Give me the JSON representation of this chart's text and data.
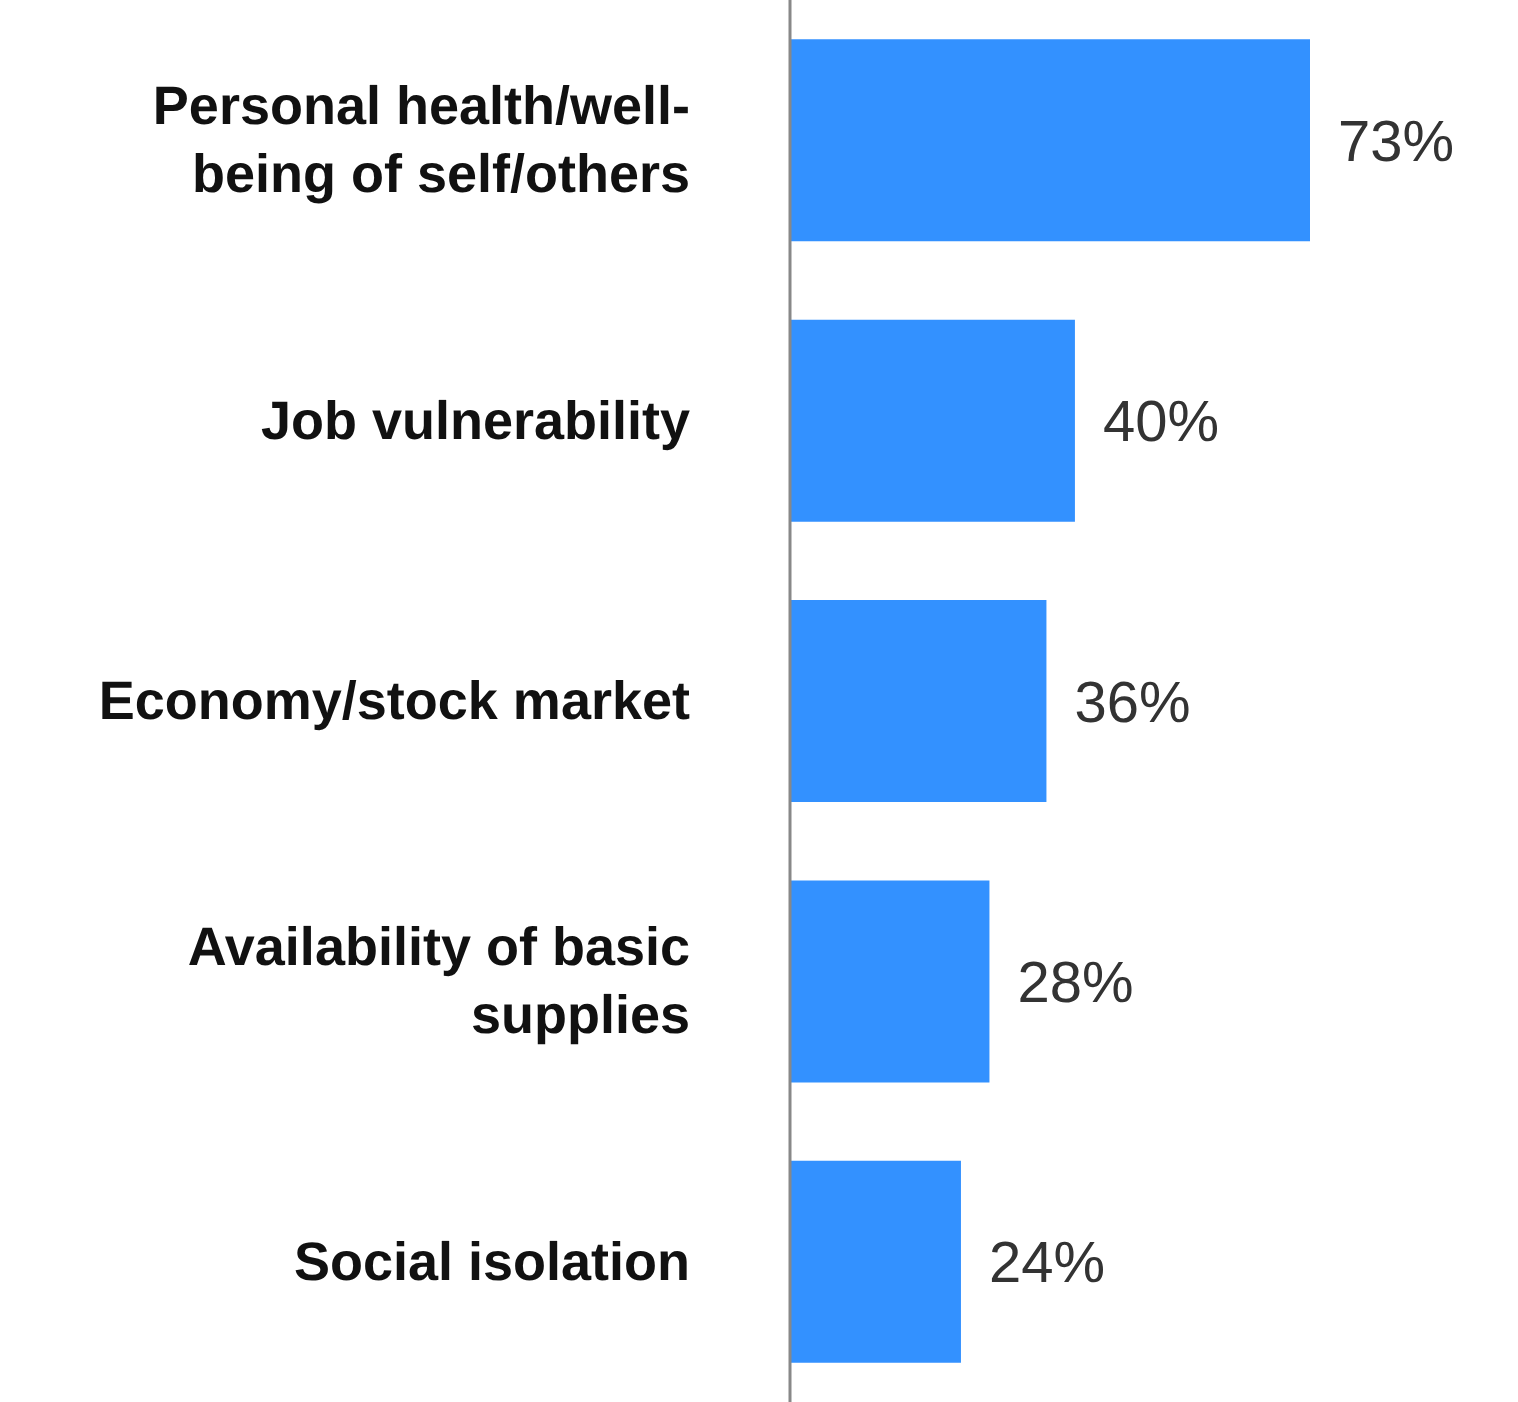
{
  "chart_data": {
    "type": "bar",
    "orientation": "horizontal",
    "categories": [
      "Personal health/well-being of self/others",
      "Job vulnerability",
      "Economy/stock market",
      "Availability of basic supplies",
      "Social isolation"
    ],
    "values": [
      73,
      40,
      36,
      28,
      24
    ],
    "color": "#3391ff",
    "value_labels": [
      "73%",
      "40%",
      "36%",
      "28%",
      "24%"
    ],
    "grid": false,
    "legend": false
  }
}
